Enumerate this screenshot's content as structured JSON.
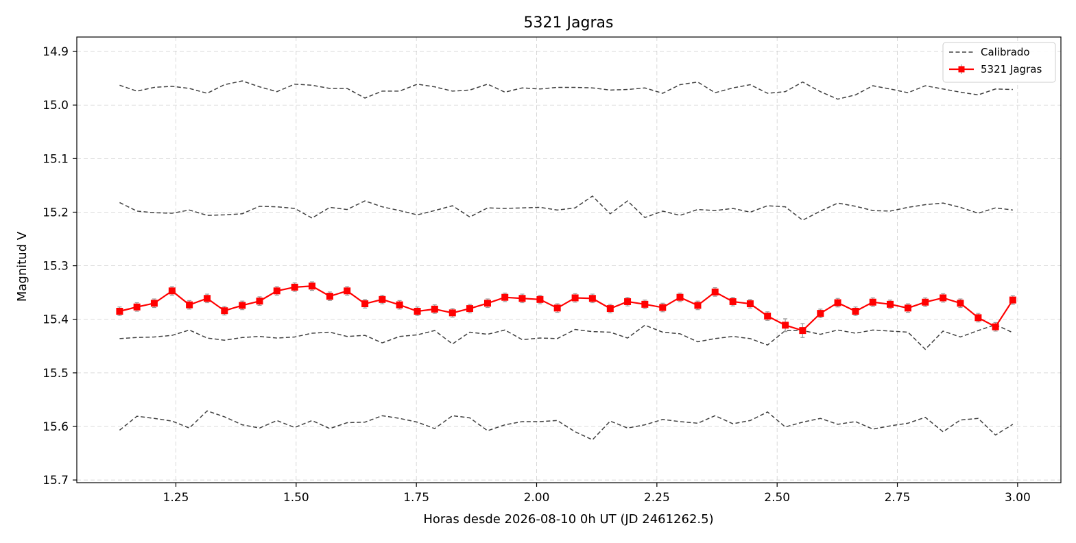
{
  "chart_data": {
    "type": "line",
    "title": "5321 Jagras",
    "xlabel": "Horas desde 2026-08-10 0h UT (JD 2461262.5)",
    "ylabel": "Magnitud V",
    "xlim": [
      1.044,
      3.09
    ],
    "ylim": [
      15.705,
      14.873
    ],
    "y_inverted": true,
    "grid": true,
    "legend_position": "upper-right",
    "x_ticks": [
      "1.25",
      "1.50",
      "1.75",
      "2.00",
      "2.25",
      "2.50",
      "2.75",
      "3.00"
    ],
    "y_ticks": [
      "14.9",
      "15.0",
      "15.1",
      "15.2",
      "15.3",
      "15.4",
      "15.5",
      "15.6",
      "15.7"
    ],
    "legend": [
      {
        "label": "Calibrado",
        "style": "dashed",
        "color": "#404040"
      },
      {
        "label": "5321 Jagras",
        "style": "solid-square-markers",
        "color": "#ff0000"
      }
    ],
    "x": [
      1.133,
      1.169,
      1.205,
      1.242,
      1.278,
      1.315,
      1.351,
      1.388,
      1.424,
      1.46,
      1.497,
      1.533,
      1.57,
      1.606,
      1.643,
      1.679,
      1.715,
      1.752,
      1.788,
      1.825,
      1.861,
      1.898,
      1.934,
      1.97,
      2.007,
      2.043,
      2.08,
      2.116,
      2.153,
      2.189,
      2.225,
      2.262,
      2.298,
      2.335,
      2.371,
      2.408,
      2.444,
      2.48,
      2.517,
      2.553,
      2.59,
      2.626,
      2.663,
      2.699,
      2.735,
      2.772,
      2.808,
      2.845,
      2.881,
      2.918,
      2.954,
      2.99
    ],
    "series": [
      {
        "name": "5321 Jagras",
        "color": "#ff0000",
        "marker": "square",
        "values": [
          15.385,
          15.377,
          15.37,
          15.347,
          15.373,
          15.361,
          15.384,
          15.374,
          15.366,
          15.347,
          15.34,
          15.338,
          15.357,
          15.347,
          15.371,
          15.363,
          15.373,
          15.385,
          15.381,
          15.388,
          15.38,
          15.37,
          15.359,
          15.361,
          15.363,
          15.379,
          15.36,
          15.361,
          15.38,
          15.367,
          15.372,
          15.378,
          15.359,
          15.374,
          15.349,
          15.367,
          15.371,
          15.394,
          15.411,
          15.421,
          15.389,
          15.369,
          15.385,
          15.368,
          15.372,
          15.379,
          15.368,
          15.36,
          15.37,
          15.397,
          15.414,
          15.364
        ],
        "errors": [
          0.008,
          0.008,
          0.008,
          0.008,
          0.008,
          0.008,
          0.008,
          0.008,
          0.008,
          0.008,
          0.008,
          0.008,
          0.008,
          0.008,
          0.008,
          0.008,
          0.008,
          0.008,
          0.008,
          0.008,
          0.008,
          0.008,
          0.008,
          0.008,
          0.008,
          0.008,
          0.008,
          0.008,
          0.008,
          0.008,
          0.008,
          0.008,
          0.008,
          0.008,
          0.008,
          0.008,
          0.008,
          0.008,
          0.012,
          0.013,
          0.008,
          0.008,
          0.008,
          0.008,
          0.008,
          0.008,
          0.008,
          0.008,
          0.008,
          0.008,
          0.008,
          0.008
        ]
      },
      {
        "name": "Calibrado",
        "color": "#404040",
        "values": [
          14.963,
          14.974,
          14.967,
          14.965,
          14.969,
          14.978,
          14.962,
          14.955,
          14.966,
          14.975,
          14.961,
          14.963,
          14.969,
          14.969,
          14.987,
          14.974,
          14.974,
          14.961,
          14.966,
          14.974,
          14.972,
          14.961,
          14.976,
          14.968,
          14.97,
          14.967,
          14.967,
          14.968,
          14.972,
          14.971,
          14.968,
          14.978,
          14.962,
          14.957,
          14.977,
          14.968,
          14.962,
          14.978,
          14.975,
          14.957,
          14.975,
          14.989,
          14.981,
          14.964,
          14.97,
          14.977,
          14.964,
          14.97,
          14.976,
          14.981,
          14.97,
          14.971
        ]
      },
      {
        "name": "Calibrado",
        "color": "#404040",
        "values": [
          15.182,
          15.198,
          15.201,
          15.202,
          15.196,
          15.206,
          15.205,
          15.203,
          15.189,
          15.19,
          15.193,
          15.211,
          15.191,
          15.195,
          15.179,
          15.19,
          15.197,
          15.205,
          15.197,
          15.188,
          15.209,
          15.192,
          15.193,
          15.192,
          15.191,
          15.196,
          15.192,
          15.17,
          15.203,
          15.179,
          15.21,
          15.198,
          15.206,
          15.195,
          15.197,
          15.193,
          15.2,
          15.188,
          15.19,
          15.215,
          15.198,
          15.183,
          15.189,
          15.197,
          15.198,
          15.191,
          15.186,
          15.183,
          15.191,
          15.202,
          15.192,
          15.196
        ]
      },
      {
        "name": "Calibrado",
        "color": "#404040",
        "values": [
          15.436,
          15.434,
          15.433,
          15.43,
          15.42,
          15.435,
          15.439,
          15.434,
          15.432,
          15.435,
          15.433,
          15.426,
          15.424,
          15.432,
          15.43,
          15.444,
          15.432,
          15.429,
          15.421,
          15.446,
          15.424,
          15.428,
          15.42,
          15.438,
          15.435,
          15.436,
          15.419,
          15.423,
          15.424,
          15.435,
          15.411,
          15.424,
          15.427,
          15.442,
          15.436,
          15.432,
          15.436,
          15.448,
          15.421,
          15.421,
          15.428,
          15.42,
          15.426,
          15.42,
          15.422,
          15.424,
          15.456,
          15.422,
          15.433,
          15.421,
          15.41,
          15.425
        ]
      },
      {
        "name": "Calibrado",
        "color": "#404040",
        "values": [
          15.607,
          15.581,
          15.585,
          15.59,
          15.603,
          15.571,
          15.582,
          15.597,
          15.603,
          15.589,
          15.602,
          15.589,
          15.604,
          15.593,
          15.592,
          15.58,
          15.585,
          15.592,
          15.604,
          15.58,
          15.584,
          15.608,
          15.597,
          15.591,
          15.591,
          15.589,
          15.61,
          15.625,
          15.59,
          15.603,
          15.597,
          15.587,
          15.591,
          15.594,
          15.58,
          15.595,
          15.589,
          15.573,
          15.601,
          15.592,
          15.585,
          15.596,
          15.591,
          15.605,
          15.599,
          15.594,
          15.583,
          15.61,
          15.588,
          15.585,
          15.616,
          15.596
        ]
      }
    ]
  }
}
